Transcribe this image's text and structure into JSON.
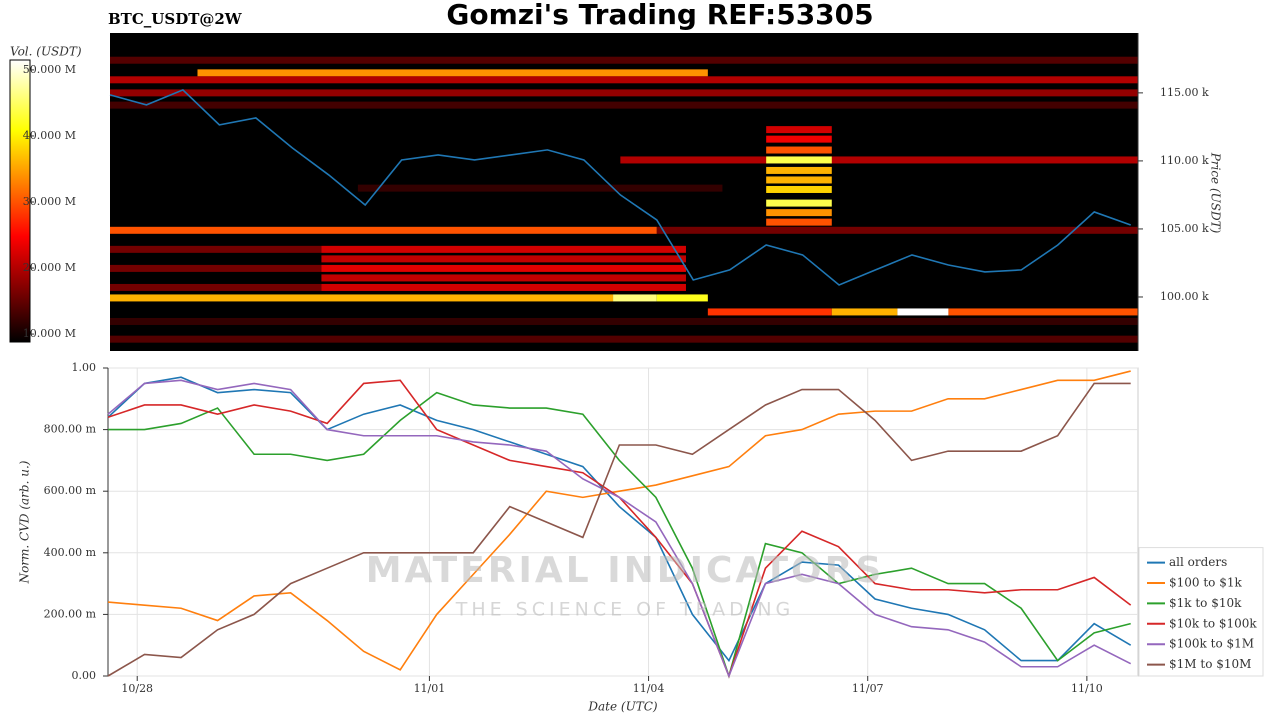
{
  "header": {
    "title": "Gomzi's Trading REF:53305",
    "symbol": "BTC_USDT@2W"
  },
  "watermark": {
    "brand": "MATERIAL INDICATORS",
    "tagline": "THE SCIENCE OF TRADING"
  },
  "chart_data": [
    {
      "type": "heatmap",
      "ylabel": "Price (USDT)",
      "xlim": [
        -0.4,
        13.7
      ],
      "ylim": [
        96030,
        119400
      ],
      "yticks": [
        {
          "value": 100000,
          "label": "100.00 k"
        },
        {
          "value": 105000,
          "label": "105.00 k"
        },
        {
          "value": 110000,
          "label": "110.00 k"
        },
        {
          "value": 115000,
          "label": "115.00 k"
        }
      ],
      "colormap": "hot",
      "colorbar": {
        "label": "Vol. (USDT)",
        "clim": [
          8.8,
          51.5
        ],
        "ticks": [
          {
            "value": 10,
            "label": "10.000 M"
          },
          {
            "value": 20,
            "label": "20.000 M"
          },
          {
            "value": 30,
            "label": "30.000 M"
          },
          {
            "value": 40,
            "label": "40.000 M"
          },
          {
            "value": 50,
            "label": "50.000 M"
          }
        ]
      },
      "cells": [
        {
          "price": 117400,
          "x0": -0.4,
          "x1": 13.7,
          "volume": 14
        },
        {
          "price": 116470,
          "x0": 0.8,
          "x1": 7.8,
          "volume": 34
        },
        {
          "price": 115960,
          "x0": -0.4,
          "x1": 13.7,
          "volume": 20
        },
        {
          "price": 115000,
          "x0": -0.4,
          "x1": 13.7,
          "volume": 18
        },
        {
          "price": 114100,
          "x0": -0.4,
          "x1": 13.7,
          "volume": 13
        },
        {
          "price": 110070,
          "x0": 6.6,
          "x1": 13.7,
          "volume": 20
        },
        {
          "price": 108000,
          "x0": 3.0,
          "x1": 8.0,
          "volume": 12
        },
        {
          "price": 112300,
          "x0": 8.6,
          "x1": 9.5,
          "volume": 22
        },
        {
          "price": 111600,
          "x0": 8.6,
          "x1": 9.5,
          "volume": 24
        },
        {
          "price": 110800,
          "x0": 8.6,
          "x1": 9.5,
          "volume": 30
        },
        {
          "price": 110070,
          "x0": 8.6,
          "x1": 9.5,
          "volume": 44
        },
        {
          "price": 109300,
          "x0": 8.6,
          "x1": 9.5,
          "volume": 36
        },
        {
          "price": 108600,
          "x0": 8.6,
          "x1": 9.5,
          "volume": 36
        },
        {
          "price": 107900,
          "x0": 8.6,
          "x1": 9.5,
          "volume": 38
        },
        {
          "price": 106900,
          "x0": 8.6,
          "x1": 9.5,
          "volume": 44
        },
        {
          "price": 106200,
          "x0": 8.6,
          "x1": 9.5,
          "volume": 34
        },
        {
          "price": 105500,
          "x0": 8.6,
          "x1": 9.5,
          "volume": 30
        },
        {
          "price": 104900,
          "x0": -0.4,
          "x1": 7.1,
          "volume": 30
        },
        {
          "price": 104900,
          "x0": 7.1,
          "x1": 13.7,
          "volume": 16
        },
        {
          "price": 103500,
          "x0": -0.4,
          "x1": 2.5,
          "volume": 16
        },
        {
          "price": 102100,
          "x0": -0.4,
          "x1": 2.5,
          "volume": 16
        },
        {
          "price": 100700,
          "x0": -0.4,
          "x1": 2.5,
          "volume": 16
        },
        {
          "price": 103500,
          "x0": 2.5,
          "x1": 7.5,
          "volume": 22
        },
        {
          "price": 102800,
          "x0": 2.5,
          "x1": 7.5,
          "volume": 21
        },
        {
          "price": 102100,
          "x0": 2.5,
          "x1": 7.5,
          "volume": 23
        },
        {
          "price": 101400,
          "x0": 2.5,
          "x1": 7.5,
          "volume": 21
        },
        {
          "price": 100700,
          "x0": 2.5,
          "x1": 7.5,
          "volume": 22
        },
        {
          "price": 99930,
          "x0": -0.4,
          "x1": 6.5,
          "volume": 36
        },
        {
          "price": 99930,
          "x0": 6.5,
          "x1": 7.1,
          "volume": 46
        },
        {
          "price": 99930,
          "x0": 7.1,
          "x1": 7.8,
          "volume": 42
        },
        {
          "price": 98900,
          "x0": 7.8,
          "x1": 9.5,
          "volume": 28
        },
        {
          "price": 98900,
          "x0": 9.5,
          "x1": 10.4,
          "volume": 36
        },
        {
          "price": 98900,
          "x0": 10.4,
          "x1": 11.1,
          "volume": 51.5
        },
        {
          "price": 98900,
          "x0": 11.1,
          "x1": 13.7,
          "volume": 30
        },
        {
          "price": 98200,
          "x0": -0.4,
          "x1": 13.7,
          "volume": 12
        },
        {
          "price": 96900,
          "x0": -0.4,
          "x1": 13.7,
          "volume": 14
        }
      ],
      "x": [
        -0.4,
        0.1,
        0.6,
        1.1,
        1.6,
        2.1,
        2.6,
        3.1,
        3.6,
        4.1,
        4.6,
        5.1,
        5.6,
        6.1,
        6.6,
        7.1,
        7.6,
        8.1,
        8.6,
        9.1,
        9.6,
        10.1,
        10.6,
        11.1,
        11.6,
        12.1,
        12.6,
        13.1,
        13.6
      ],
      "price_line": {
        "color": "#1f77b4",
        "values": [
          114850,
          114120,
          115220,
          112650,
          113160,
          110960,
          108970,
          106760,
          110070,
          110440,
          110070,
          110440,
          110810,
          110070,
          107500,
          105660,
          101250,
          101990,
          103820,
          103090,
          100880,
          101990,
          103090,
          102350,
          101840,
          101990,
          103820,
          106250,
          105290
        ]
      }
    },
    {
      "type": "line",
      "xlabel": "Date (UTC)",
      "ylabel": "Norm. CVD (arb. u.)",
      "grid": true,
      "legend": "lower right",
      "xlim": [
        -0.4,
        13.7
      ],
      "ylim": [
        0,
        1
      ],
      "xticks": [
        {
          "value": 0,
          "label": "10/28"
        },
        {
          "value": 4,
          "label": "11/01"
        },
        {
          "value": 7,
          "label": "11/04"
        },
        {
          "value": 10,
          "label": "11/07"
        },
        {
          "value": 13,
          "label": "11/10"
        }
      ],
      "yticks": [
        {
          "value": 0,
          "label": "0.00"
        },
        {
          "value": 0.2,
          "label": "200.00 m"
        },
        {
          "value": 0.4,
          "label": "400.00 m"
        },
        {
          "value": 0.6,
          "label": "600.00 m"
        },
        {
          "value": 0.8,
          "label": "800.00 m"
        },
        {
          "value": 1,
          "label": "1.00"
        }
      ],
      "x": [
        -0.4,
        0.1,
        0.6,
        1.1,
        1.6,
        2.1,
        2.6,
        3.1,
        3.6,
        4.1,
        4.6,
        5.1,
        5.6,
        6.1,
        6.6,
        7.1,
        7.6,
        8.1,
        8.6,
        9.1,
        9.6,
        10.1,
        10.6,
        11.1,
        11.6,
        12.1,
        12.6,
        13.1,
        13.6
      ],
      "series": [
        {
          "name": "all orders",
          "color": "#1f77b4",
          "values": [
            0.84,
            0.95,
            0.97,
            0.92,
            0.93,
            0.92,
            0.8,
            0.85,
            0.88,
            0.83,
            0.8,
            0.76,
            0.72,
            0.68,
            0.55,
            0.45,
            0.2,
            0.05,
            0.3,
            0.37,
            0.36,
            0.25,
            0.22,
            0.2,
            0.15,
            0.05,
            0.05,
            0.17,
            0.1
          ]
        },
        {
          "name": "$100 to $1k",
          "color": "#ff7f0e",
          "values": [
            0.24,
            0.23,
            0.22,
            0.18,
            0.26,
            0.27,
            0.18,
            0.08,
            0.02,
            0.2,
            0.33,
            0.46,
            0.6,
            0.58,
            0.6,
            0.62,
            0.65,
            0.68,
            0.78,
            0.8,
            0.85,
            0.86,
            0.86,
            0.9,
            0.9,
            0.93,
            0.96,
            0.96,
            0.99
          ]
        },
        {
          "name": "$1k to $10k",
          "color": "#2ca02c",
          "values": [
            0.8,
            0.8,
            0.82,
            0.87,
            0.72,
            0.72,
            0.7,
            0.72,
            0.83,
            0.92,
            0.88,
            0.87,
            0.87,
            0.85,
            0.7,
            0.58,
            0.35,
            0.0,
            0.43,
            0.4,
            0.3,
            0.33,
            0.35,
            0.3,
            0.3,
            0.22,
            0.05,
            0.14,
            0.17
          ]
        },
        {
          "name": "$10k to $100k",
          "color": "#d62728",
          "values": [
            0.84,
            0.88,
            0.88,
            0.85,
            0.88,
            0.86,
            0.82,
            0.95,
            0.96,
            0.8,
            0.75,
            0.7,
            0.68,
            0.66,
            0.58,
            0.45,
            0.3,
            0.0,
            0.35,
            0.47,
            0.42,
            0.3,
            0.28,
            0.28,
            0.27,
            0.28,
            0.28,
            0.32,
            0.23
          ]
        },
        {
          "name": "$100k to $1M",
          "color": "#9467bd",
          "values": [
            0.85,
            0.95,
            0.96,
            0.93,
            0.95,
            0.93,
            0.8,
            0.78,
            0.78,
            0.78,
            0.76,
            0.75,
            0.73,
            0.64,
            0.58,
            0.5,
            0.3,
            0.0,
            0.3,
            0.33,
            0.3,
            0.2,
            0.16,
            0.15,
            0.11,
            0.03,
            0.03,
            0.1,
            0.04
          ]
        },
        {
          "name": "$1M to $10M",
          "color": "#8c564b",
          "values": [
            0.0,
            0.07,
            0.06,
            0.15,
            0.2,
            0.3,
            0.35,
            0.4,
            0.4,
            0.4,
            0.4,
            0.55,
            0.5,
            0.45,
            0.75,
            0.75,
            0.72,
            0.8,
            0.88,
            0.93,
            0.93,
            0.83,
            0.7,
            0.73,
            0.73,
            0.73,
            0.78,
            0.95,
            0.95
          ]
        }
      ]
    }
  ]
}
